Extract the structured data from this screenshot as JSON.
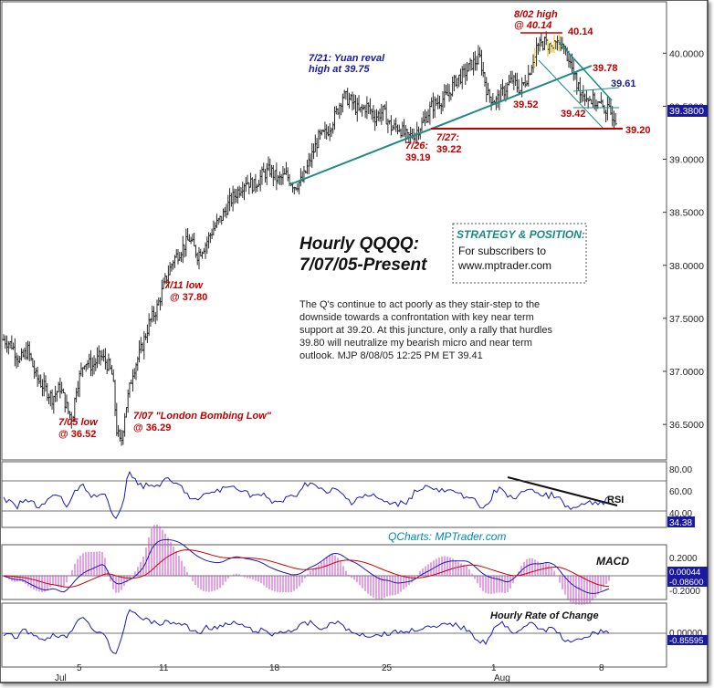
{
  "chart_data": {
    "type": "ohlc",
    "title": "Hourly QQQQ:",
    "subtitle": "7/07/05-Present",
    "price_axis": {
      "ylim": [
        36.2,
        40.45
      ],
      "ticks": [
        "40.0000",
        "39.5000",
        "39.0000",
        "38.5000",
        "38.0000",
        "37.5000",
        "37.0000",
        "36.5000"
      ],
      "tick_values": [
        40.0,
        39.5,
        39.0,
        38.5,
        38.0,
        37.5,
        37.0,
        36.5
      ],
      "last_price_label": "39.3800",
      "last_price": 39.38
    },
    "x_axis": {
      "day_labels": [
        "5",
        "11",
        "18",
        "25",
        "1",
        "8"
      ],
      "month_labels": [
        "Jul",
        "Aug"
      ]
    },
    "price_path": [
      [
        0,
        37.3
      ],
      [
        2,
        37.25
      ],
      [
        4,
        37.1
      ],
      [
        6,
        37.2
      ],
      [
        8,
        36.95
      ],
      [
        10,
        36.85
      ],
      [
        12,
        36.75
      ],
      [
        14,
        36.85
      ],
      [
        16,
        36.62
      ],
      [
        17,
        36.55
      ],
      [
        18,
        36.85
      ],
      [
        20,
        37.1
      ],
      [
        22,
        37.05
      ],
      [
        24,
        37.15
      ],
      [
        26,
        37.05
      ],
      [
        27,
        36.95
      ],
      [
        28,
        36.45
      ],
      [
        29,
        36.3
      ],
      [
        30,
        36.6
      ],
      [
        32,
        37.0
      ],
      [
        34,
        37.2
      ],
      [
        36,
        37.45
      ],
      [
        38,
        37.6
      ],
      [
        40,
        37.85
      ],
      [
        42,
        38.05
      ],
      [
        44,
        38.15
      ],
      [
        46,
        38.25
      ],
      [
        48,
        38.1
      ],
      [
        50,
        38.2
      ],
      [
        52,
        38.35
      ],
      [
        54,
        38.45
      ],
      [
        56,
        38.6
      ],
      [
        58,
        38.7
      ],
      [
        60,
        38.8
      ],
      [
        62,
        38.75
      ],
      [
        64,
        38.85
      ],
      [
        66,
        38.9
      ],
      [
        68,
        38.8
      ],
      [
        70,
        38.85
      ],
      [
        72,
        38.75
      ],
      [
        74,
        38.8
      ],
      [
        76,
        39.0
      ],
      [
        78,
        39.2
      ],
      [
        80,
        39.25
      ],
      [
        82,
        39.4
      ],
      [
        84,
        39.6
      ],
      [
        86,
        39.55
      ],
      [
        88,
        39.45
      ],
      [
        90,
        39.5
      ],
      [
        92,
        39.4
      ],
      [
        94,
        39.45
      ],
      [
        96,
        39.3
      ],
      [
        98,
        39.3
      ],
      [
        100,
        39.2
      ],
      [
        102,
        39.25
      ],
      [
        104,
        39.35
      ],
      [
        106,
        39.5
      ],
      [
        108,
        39.55
      ],
      [
        110,
        39.6
      ],
      [
        112,
        39.75
      ],
      [
        114,
        39.8
      ],
      [
        116,
        39.9
      ],
      [
        118,
        39.95
      ],
      [
        120,
        39.6
      ],
      [
        122,
        39.55
      ],
      [
        124,
        39.65
      ],
      [
        126,
        39.75
      ],
      [
        128,
        39.65
      ],
      [
        130,
        39.8
      ],
      [
        132,
        40.05
      ],
      [
        134,
        40.1
      ],
      [
        136,
        40.05
      ],
      [
        138,
        40.1
      ],
      [
        140,
        39.95
      ],
      [
        142,
        39.7
      ],
      [
        144,
        39.6
      ],
      [
        146,
        39.55
      ],
      [
        148,
        39.5
      ],
      [
        150,
        39.45
      ],
      [
        152,
        39.38
      ]
    ],
    "x_domain": [
      0,
      152
    ],
    "annotations": {
      "high_0802": [
        "8/02 high",
        "@ 40.14"
      ],
      "val_4014": "40.14",
      "val_3978": "39.78",
      "val_3961": "39.61",
      "val_3952": "39.52",
      "val_3942": "39.42",
      "val_3920": "39.20",
      "yuan": [
        "7/21: Yuan reval",
        "high at 39.75"
      ],
      "low_0726": [
        "7/26:",
        "39.19"
      ],
      "low_0727": [
        "7/27:",
        "39.22"
      ],
      "low_0711": [
        "7/11 low",
        "@ 37.80"
      ],
      "low_0705": [
        "7/05 low",
        "@ 36.52"
      ],
      "low_0707": [
        "7/07 \"London Bombing Low\"",
        "@ 36.29"
      ]
    },
    "strategy_box": {
      "heading": "STRATEGY & POSITION:",
      "lines": [
        "For subscribers to",
        "www.mptrader.com"
      ]
    },
    "commentary": [
      "The Q's continue to act poorly as they stair-step to the",
      "downside towards a confrontation with key near term",
      "support at 39.20. At this juncture, only a rally that hurdles",
      "39.80 will neutralize my bearish micro and near term",
      "outlook.  MJP 8/08/05 12:25 PM ET 39.41"
    ],
    "rsi": {
      "label": "RSI",
      "ticks": [
        "80.00",
        "60.00",
        "40.00"
      ],
      "tick_values": [
        80,
        60,
        40
      ],
      "ylim": [
        25,
        90
      ],
      "last_label": "34.38",
      "last": 34.38
    },
    "watermark": "QCharts: MPTrader.com",
    "macd": {
      "label": "MACD",
      "ticks": [
        "0.2000",
        "-0.2000"
      ],
      "last_label": "0.00044",
      "signal_label": "-0.08600"
    },
    "roc": {
      "label": "Hourly Rate of Change",
      "ticks": [
        "0.00000"
      ],
      "last_label": "-0.85595"
    },
    "colors": {
      "price_bar": "#2a2a2a",
      "trendline": "#1f8a80",
      "support_line": "#c00000",
      "annotation_red": "#c00000",
      "annotation_blue": "#1a1aa0",
      "rsi_line": "#1a1ab0",
      "macd_red": "#cc0000",
      "macd_hist": "#cc44cc",
      "last_label_bg": "#1a1aa0",
      "yellow_wick": "#e8c000",
      "watermark": "#0088aa",
      "strategy_heading": "#1a8a80"
    }
  }
}
